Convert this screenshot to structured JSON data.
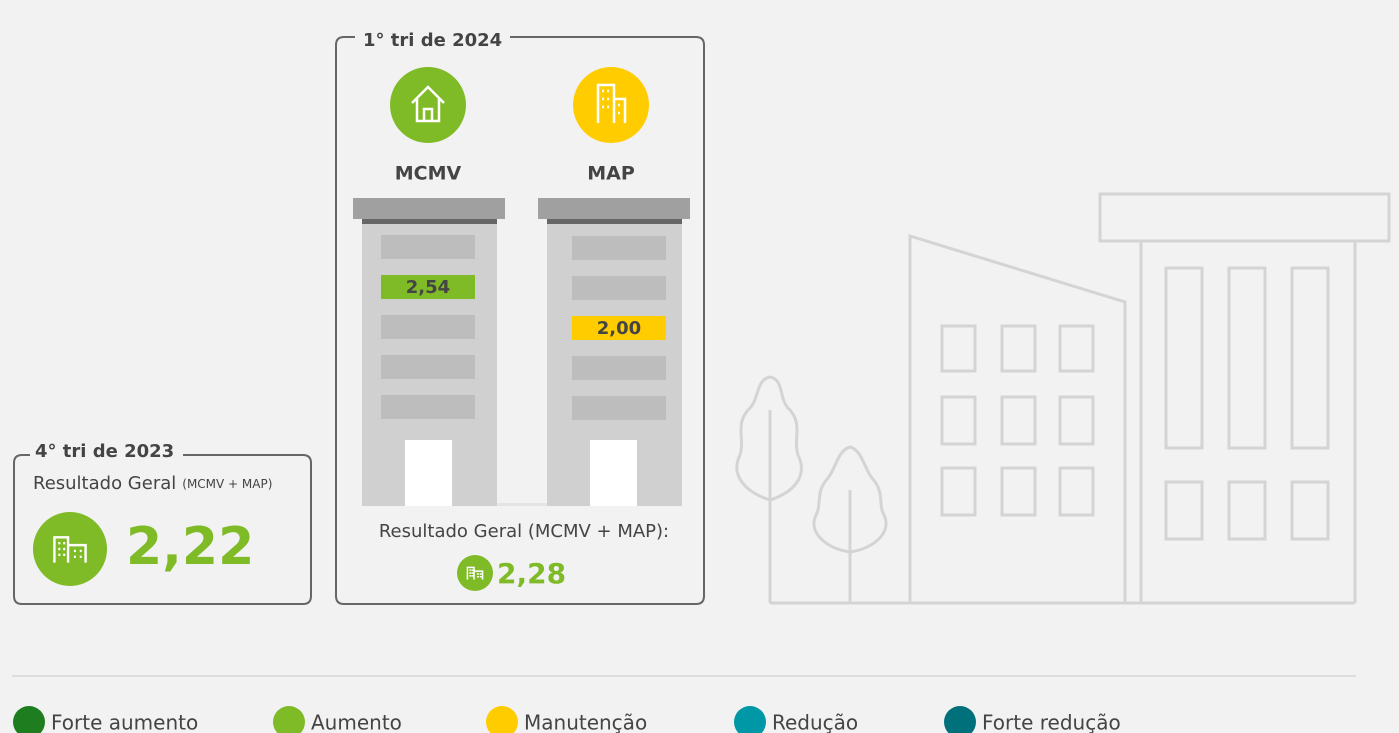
{
  "current": {
    "title": "1° tri de 2024",
    "segments": [
      {
        "label": "MCMV",
        "value": "2,54",
        "color": "#7fba27"
      },
      {
        "label": "MAP",
        "value": "2,00",
        "color": "#ffcc00"
      }
    ],
    "overall_label": "Resultado Geral (MCMV + MAP):",
    "overall_value": "2,28",
    "overall_color": "#7fba27"
  },
  "previous": {
    "title": "4° tri de 2023",
    "overall_label": "Resultado Geral",
    "overall_note": "(MCMV + MAP)",
    "overall_value": "2,22",
    "overall_color": "#7fba27"
  },
  "legend": [
    {
      "label": "Forte aumento",
      "color": "#1e7d1e"
    },
    {
      "label": "Aumento",
      "color": "#7fba27"
    },
    {
      "label": "Manutenção",
      "color": "#ffcc00"
    },
    {
      "label": "Redução",
      "color": "#0097a7"
    },
    {
      "label": "Forte redução",
      "color": "#00707a"
    }
  ]
}
